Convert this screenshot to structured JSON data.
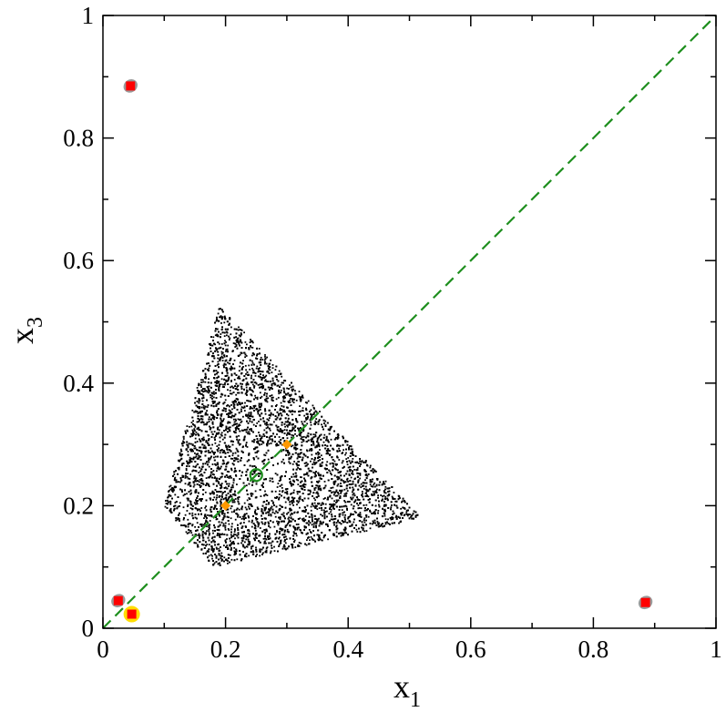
{
  "chart_data": {
    "type": "scatter",
    "title": "",
    "xlabel": {
      "main": "x",
      "sub": "1"
    },
    "ylabel": {
      "main": "x",
      "sub": "3"
    },
    "xlim": [
      0,
      1
    ],
    "ylim": [
      0,
      1
    ],
    "xticks": [
      {
        "value": 0,
        "label": "0"
      },
      {
        "value": 0.2,
        "label": "0.2"
      },
      {
        "value": 0.4,
        "label": "0.4"
      },
      {
        "value": 0.6,
        "label": "0.6"
      },
      {
        "value": 0.8,
        "label": "0.8"
      },
      {
        "value": 1,
        "label": "1"
      }
    ],
    "yticks": [
      {
        "value": 0,
        "label": "0"
      },
      {
        "value": 0.2,
        "label": "0.2"
      },
      {
        "value": 0.4,
        "label": "0.4"
      },
      {
        "value": 0.6,
        "label": "0.6"
      },
      {
        "value": 0.8,
        "label": "0.8"
      },
      {
        "value": 1,
        "label": "1"
      }
    ],
    "minor_tick_step": 0.1,
    "grid": false,
    "legend": "none",
    "cloud": {
      "color": "#000000",
      "point_count": 9000,
      "vertices": [
        {
          "x": 0.19,
          "y": 0.525
        },
        {
          "x": 0.52,
          "y": 0.18
        },
        {
          "x": 0.18,
          "y": 0.1
        },
        {
          "x": 0.1,
          "y": 0.2
        }
      ]
    },
    "diagonal_line": {
      "color": "#1f8f1f",
      "style": "dashed",
      "points": [
        {
          "x": 0,
          "y": 0
        },
        {
          "x": 1,
          "y": 1
        }
      ]
    },
    "markers": {
      "grey_clusters": {
        "color": "#9a9a9a",
        "points": [
          {
            "x": 0.045,
            "y": 0.885
          },
          {
            "x": 0.885,
            "y": 0.042
          },
          {
            "x": 0.025,
            "y": 0.045
          }
        ]
      },
      "red_squares": {
        "color": "#ff0000",
        "points": [
          {
            "x": 0.045,
            "y": 0.885
          },
          {
            "x": 0.885,
            "y": 0.042
          },
          {
            "x": 0.025,
            "y": 0.045
          },
          {
            "x": 0.047,
            "y": 0.023
          }
        ]
      },
      "yellow_ring": {
        "color": "#ffdd00",
        "points": [
          {
            "x": 0.047,
            "y": 0.023
          }
        ]
      },
      "orange_diamonds": {
        "color": "#ff9900",
        "points": [
          {
            "x": 0.2,
            "y": 0.2
          },
          {
            "x": 0.3,
            "y": 0.3
          }
        ]
      },
      "green_circle": {
        "color": "#1f8f1f",
        "points": [
          {
            "x": 0.25,
            "y": 0.25
          }
        ]
      }
    }
  }
}
